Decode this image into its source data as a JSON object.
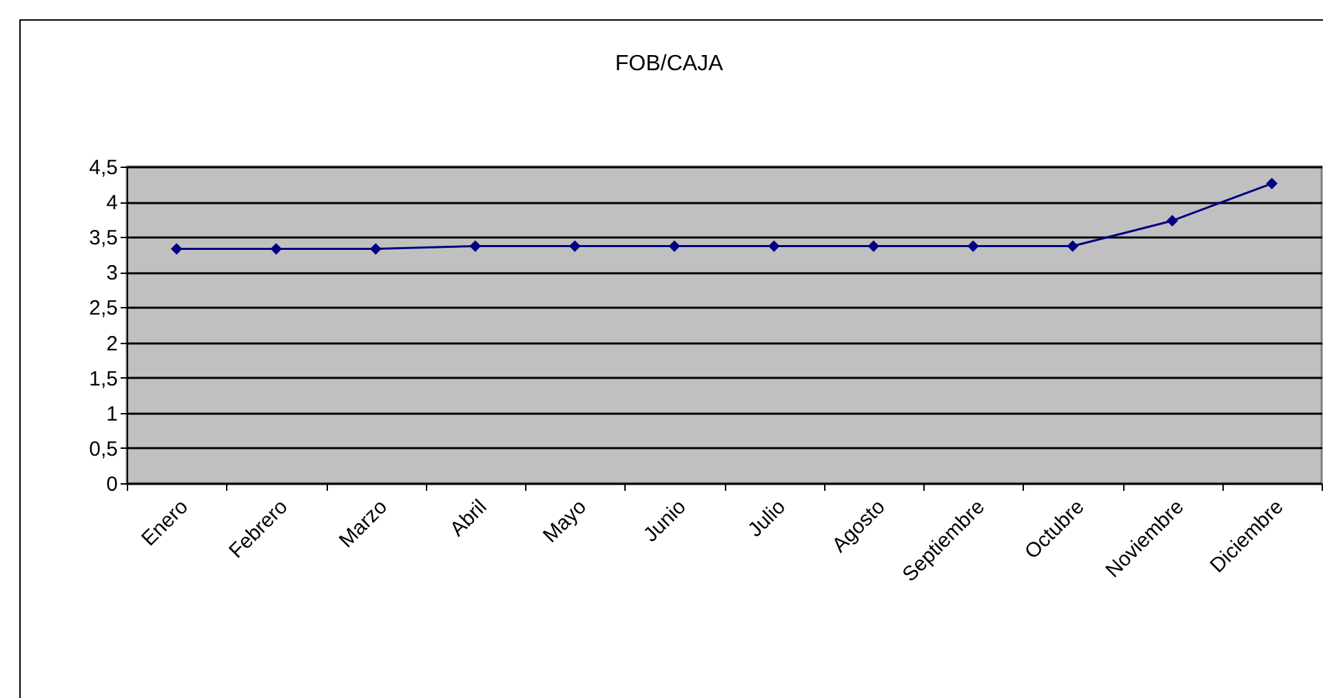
{
  "chart_data": {
    "type": "line",
    "title": "FOB/CAJA",
    "categories": [
      "Enero",
      "Febrero",
      "Marzo",
      "Abril",
      "Mayo",
      "Junio",
      "Julio",
      "Agosto",
      "Septiembre",
      "Octubre",
      "Noviembre",
      "Diciembre"
    ],
    "series": [
      {
        "color": "#000080",
        "values": [
          3.33,
          3.33,
          3.33,
          3.37,
          3.37,
          3.37,
          3.37,
          3.37,
          3.37,
          3.37,
          3.73,
          4.26
        ]
      }
    ],
    "ylim": [
      0,
      4.5
    ],
    "yticks": [
      0,
      {
        "value": 0.5,
        "label": "0,5"
      },
      1,
      {
        "value": 1.5,
        "label": "1,5"
      },
      2,
      {
        "value": 2.5,
        "label": "2,5"
      },
      3,
      {
        "value": 3.5,
        "label": "3,5"
      },
      4,
      {
        "value": 4.5,
        "label": "4,5"
      }
    ],
    "grid": "y",
    "marker": "diamond",
    "legend": false
  }
}
